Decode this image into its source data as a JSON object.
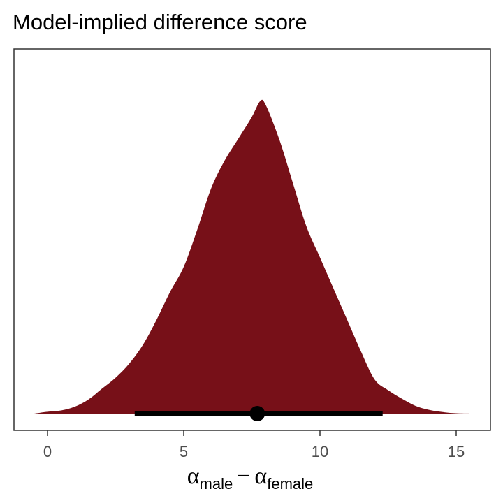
{
  "title": "Model-implied difference score",
  "colors": {
    "density_fill": "#771018",
    "interval": "#000000",
    "panel_border": "#333333",
    "tick_text": "#4d4d4d"
  },
  "chart_data": {
    "type": "area",
    "title": "Model-implied difference score",
    "xlabel": {
      "symbol": "α",
      "minus": "−",
      "sub1": "male",
      "sub2": "female"
    },
    "ylabel": "",
    "xlim": [
      -0.5,
      15.5
    ],
    "xticks": [
      0,
      5,
      10,
      15
    ],
    "xtick_labels": [
      "0",
      "5",
      "10",
      "15"
    ],
    "grid": false,
    "density": {
      "x": [
        -0.5,
        0.0,
        0.5,
        1.0,
        1.5,
        2.0,
        2.5,
        3.0,
        3.5,
        4.0,
        4.5,
        5.0,
        5.5,
        6.0,
        6.5,
        7.0,
        7.5,
        7.8,
        8.0,
        8.5,
        9.0,
        9.5,
        10.0,
        10.5,
        11.0,
        11.5,
        12.0,
        12.5,
        13.0,
        13.5,
        14.0,
        14.5,
        15.0,
        15.5
      ],
      "y": [
        0.0,
        0.006,
        0.01,
        0.022,
        0.045,
        0.08,
        0.115,
        0.16,
        0.22,
        0.3,
        0.39,
        0.47,
        0.59,
        0.72,
        0.81,
        0.88,
        0.95,
        1.0,
        0.99,
        0.88,
        0.74,
        0.6,
        0.5,
        0.4,
        0.3,
        0.2,
        0.11,
        0.075,
        0.048,
        0.025,
        0.012,
        0.005,
        0.001,
        0.0
      ]
    },
    "point_estimate": 7.7,
    "interval": [
      3.2,
      12.3
    ]
  }
}
